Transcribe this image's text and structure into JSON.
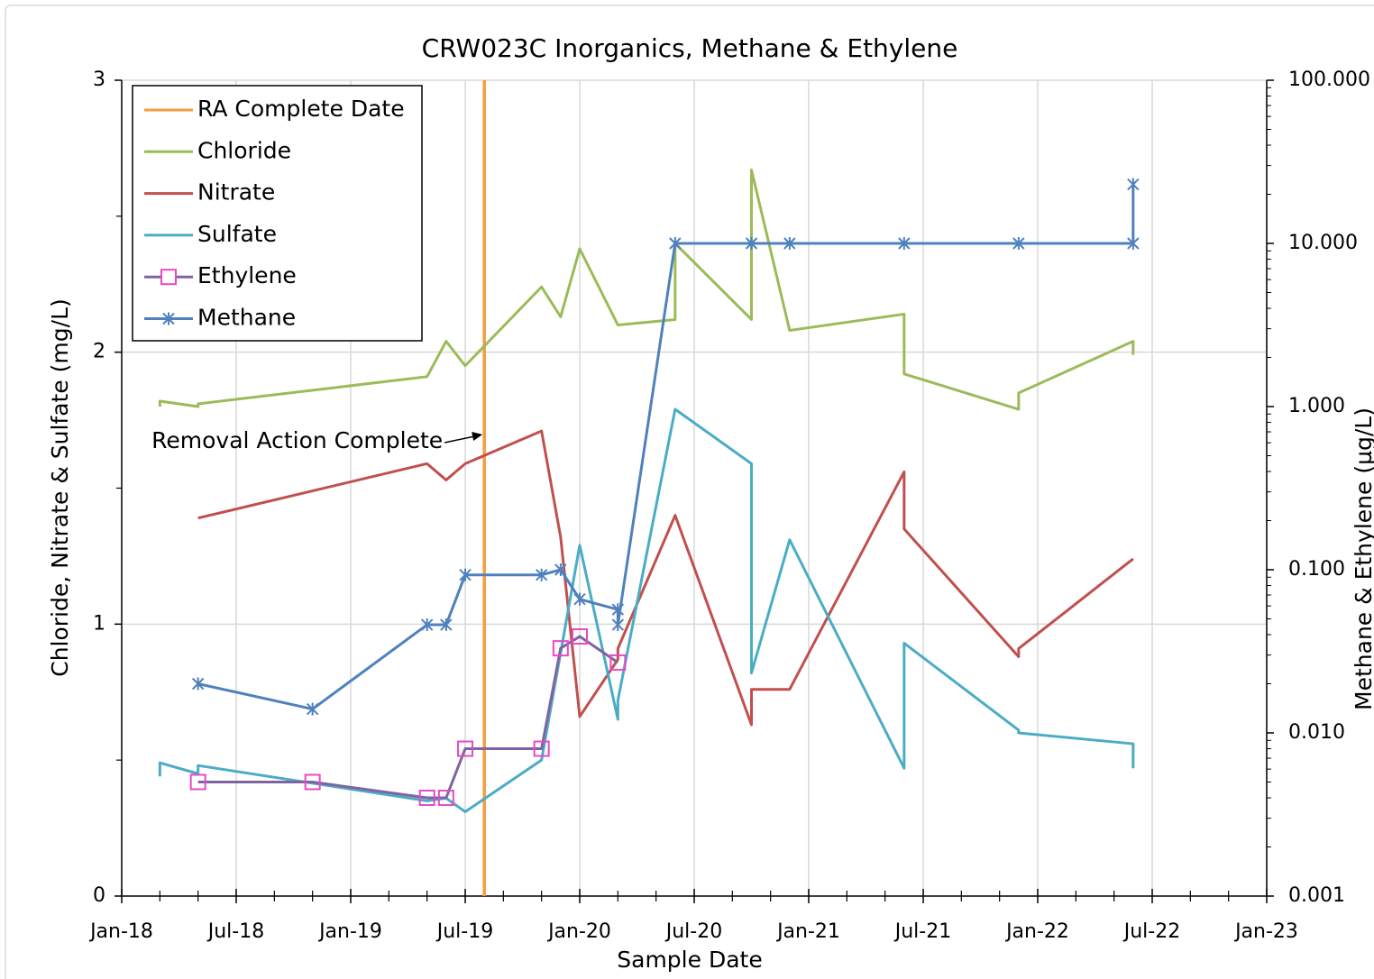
{
  "chart_data": {
    "type": "line",
    "title": "CRW023C Inorganics, Methane & Ethylene",
    "x_label": "Sample Date",
    "y_label": "Chloride,  Nitrate  &  Sulfate  (mg/L)",
    "y2_label": "Methane &  Ethylene  (µg/L)",
    "xlim": [
      "2018-01",
      "2023-01"
    ],
    "xticks": [
      {
        "value": "2018-01",
        "label": "Jan-18"
      },
      {
        "value": "2018-07",
        "label": "Jul-18"
      },
      {
        "value": "2019-01",
        "label": "Jan-19"
      },
      {
        "value": "2019-07",
        "label": "Jul-19"
      },
      {
        "value": "2020-01",
        "label": "Jan-20"
      },
      {
        "value": "2020-07",
        "label": "Jul-20"
      },
      {
        "value": "2021-01",
        "label": "Jan-21"
      },
      {
        "value": "2021-07",
        "label": "Jul-21"
      },
      {
        "value": "2022-01",
        "label": "Jan-22"
      },
      {
        "value": "2022-07",
        "label": "Jul-22"
      },
      {
        "value": "2023-01",
        "label": "Jan-23"
      }
    ],
    "ylim": [
      0,
      3
    ],
    "yticks": [
      0,
      1,
      2,
      3
    ],
    "y2lim": [
      0.001,
      100
    ],
    "y2_log": true,
    "y2ticks": [
      {
        "value": 0.001,
        "label": "0.001"
      },
      {
        "value": 0.01,
        "label": "0.010"
      },
      {
        "value": 0.1,
        "label": "0.100"
      },
      {
        "value": 1,
        "label": "1.000"
      },
      {
        "value": 10,
        "label": "10.000"
      },
      {
        "value": 100,
        "label": "100.000"
      }
    ],
    "grid": true,
    "legend": "upper left",
    "vertical_line": {
      "name": "RA Complete Date",
      "x": "2019-08",
      "color": "#f59d3e"
    },
    "annotation": {
      "text": "Removal Action Complete",
      "x": "2019-08"
    },
    "series": [
      {
        "name": "Chloride",
        "color": "#9bbb59",
        "x": [
          "2018-03",
          "2018-03",
          "2018-05",
          "2018-05",
          "2019-05",
          "2019-06",
          "2019-07",
          "2019-11",
          "2019-12",
          "2020-01",
          "2020-03",
          "2020-06",
          "2020-06",
          "2020-10",
          "2020-10",
          "2020-12",
          "2021-06",
          "2021-06",
          "2021-12",
          "2021-12",
          "2022-06",
          "2022-06"
        ],
        "values": [
          1.8,
          1.82,
          1.8,
          1.81,
          1.91,
          2.04,
          1.95,
          2.24,
          2.13,
          2.38,
          2.1,
          2.12,
          2.4,
          2.12,
          2.67,
          2.08,
          2.14,
          1.92,
          1.79,
          1.85,
          2.04,
          1.99
        ]
      },
      {
        "name": "Nitrate",
        "color": "#c0504d",
        "x": [
          "2018-05",
          "2019-05",
          "2019-06",
          "2019-07",
          "2019-11",
          "2019-12",
          "2020-01",
          "2020-03",
          "2020-03",
          "2020-06",
          "2020-10",
          "2020-10",
          "2020-12",
          "2021-06",
          "2021-06",
          "2021-12",
          "2021-12",
          "2022-06"
        ],
        "values": [
          1.39,
          1.59,
          1.53,
          1.59,
          1.71,
          1.32,
          0.66,
          0.87,
          0.91,
          1.4,
          0.63,
          0.76,
          0.76,
          1.56,
          1.35,
          0.88,
          0.91,
          1.24
        ]
      },
      {
        "name": "Sulfate",
        "color": "#4bacc6",
        "x": [
          "2018-03",
          "2018-03",
          "2018-05",
          "2018-05",
          "2019-05",
          "2019-06",
          "2019-07",
          "2019-11",
          "2020-01",
          "2020-03",
          "2020-03",
          "2020-06",
          "2020-10",
          "2020-10",
          "2020-12",
          "2021-06",
          "2021-06",
          "2021-12",
          "2021-12",
          "2022-06",
          "2022-06"
        ],
        "values": [
          0.44,
          0.49,
          0.45,
          0.48,
          0.35,
          0.36,
          0.31,
          0.5,
          1.29,
          0.65,
          0.72,
          1.79,
          1.59,
          0.82,
          1.31,
          0.47,
          0.93,
          0.61,
          0.6,
          0.56,
          0.47
        ]
      },
      {
        "name": "Ethylene",
        "color": "#8064a2",
        "marker": "square",
        "marker_color": "#e649c8",
        "axis": "y2",
        "x": [
          "2018-05",
          "2018-11",
          "2019-05",
          "2019-06",
          "2019-07",
          "2019-11",
          "2019-12",
          "2020-01",
          "2020-03"
        ],
        "values": [
          0.005,
          0.005,
          0.004,
          0.004,
          0.008,
          0.008,
          0.033,
          0.039,
          0.027
        ]
      },
      {
        "name": "Methane",
        "color": "#4f81bd",
        "marker": "asterisk",
        "marker_color": "#4f81bd",
        "axis": "y2",
        "x": [
          "2018-05",
          "2018-11",
          "2019-05",
          "2019-06",
          "2019-07",
          "2019-11",
          "2019-12",
          "2020-01",
          "2020-03",
          "2020-03",
          "2020-06",
          "2020-10",
          "2020-12",
          "2021-06",
          "2021-12",
          "2022-06",
          "2022-06"
        ],
        "values": [
          0.02,
          0.014,
          0.046,
          0.046,
          0.093,
          0.093,
          0.1,
          0.066,
          0.057,
          0.046,
          10,
          10,
          10,
          10,
          10,
          10,
          23
        ]
      }
    ]
  }
}
